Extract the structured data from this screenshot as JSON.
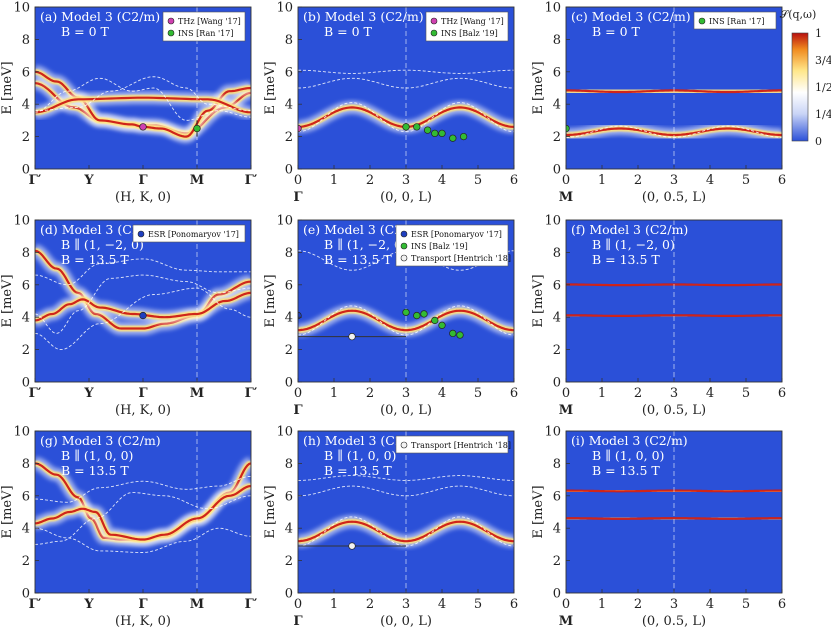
{
  "colorbar": {
    "title": "𝒮(q,ω)",
    "ticks": [
      "1",
      "3/4",
      "1/2",
      "1/4",
      "0"
    ]
  },
  "colors": {
    "background": "#2b50d8",
    "band_core": "#cc1a14",
    "band_glow": "#ffe27a",
    "thz": "#d040b0",
    "ins": "#33bb33",
    "esr": "#1f3fbf",
    "transport": "#f2f2f2"
  },
  "chart_data": [
    {
      "panel": "a",
      "type": "line",
      "annotation": [
        "(a) Model 3 (C2/m)",
        "B = 0 T"
      ],
      "xlabel": "(H, K, 0)",
      "ylabel": "E [meV]",
      "ylim": [
        0,
        10
      ],
      "x_kind": "path",
      "x_ticks": [
        "Γ′",
        "Y",
        "Γ",
        "M",
        "Γ′"
      ],
      "bands": [
        {
          "x": [
            0,
            0.18,
            0.3,
            0.45,
            0.55,
            0.7,
            0.88,
            1
          ],
          "y": [
            5.3,
            3.8,
            3.0,
            2.7,
            2.7,
            2.2,
            3.8,
            4.7
          ]
        },
        {
          "x": [
            0,
            0.1,
            0.2,
            0.3,
            0.45,
            0.5,
            0.58,
            0.7,
            0.8,
            0.9,
            1
          ],
          "y": [
            6.0,
            5.4,
            4.4,
            3.0,
            2.75,
            2.6,
            2.5,
            2.0,
            3.6,
            4.8,
            5.0
          ]
        },
        {
          "x": [
            0,
            0.2,
            0.5,
            0.8,
            1
          ],
          "y": [
            3.5,
            4.3,
            4.4,
            4.3,
            3.5
          ]
        }
      ],
      "dashed": [
        {
          "x": [
            0,
            0.15,
            0.3,
            0.45,
            0.55,
            0.7,
            0.85,
            1
          ],
          "y": [
            3.5,
            4.8,
            5.6,
            4.8,
            5.0,
            3.0,
            3.6,
            3.2
          ]
        },
        {
          "x": [
            0,
            0.2,
            0.35,
            0.55,
            0.7,
            0.8,
            1
          ],
          "y": [
            3.6,
            3.8,
            4.8,
            5.7,
            5.0,
            4.0,
            3.6
          ]
        }
      ],
      "legend": [
        {
          "label": "THz [Wang '17]",
          "marker": "thz"
        },
        {
          "label": "INS [Ran '17]",
          "marker": "ins"
        }
      ],
      "points": [
        {
          "set": "thz",
          "x": 0.5,
          "y": 2.6
        },
        {
          "set": "ins",
          "x": 0.75,
          "y": 2.5,
          "err": 0.5
        }
      ],
      "vlines": [
        0.75
      ]
    },
    {
      "panel": "b",
      "type": "line",
      "annotation": [
        "(b) Model 3 (C2/m)",
        "B = 0 T"
      ],
      "xlabel": "(0, 0, L)",
      "ylabel": "E [meV]",
      "ylim": [
        0,
        10
      ],
      "x_kind": "L",
      "xlim": [
        0,
        6
      ],
      "x_ticks": [
        "0",
        "1",
        "2",
        "3",
        "4",
        "5",
        "6"
      ],
      "x_sub": "Γ",
      "bands": [
        {
          "fn": "cos",
          "base": 3.2,
          "amp": -0.6,
          "period": 3
        }
      ],
      "dashed": [
        {
          "fn": "cos",
          "base": 6.0,
          "amp": 0.1,
          "period": 3
        },
        {
          "fn": "cos",
          "base": 5.3,
          "amp": -0.3,
          "period": 3
        },
        {
          "fn": "cos",
          "base": 3.2,
          "amp": -0.9,
          "period": 3
        }
      ],
      "legend": [
        {
          "label": "THz [Wang '17]",
          "marker": "thz"
        },
        {
          "label": "INS [Balz '19]",
          "marker": "ins"
        }
      ],
      "points": [
        {
          "set": "thz",
          "x": 0,
          "y": 2.5
        },
        {
          "set": "ins",
          "x": 3.0,
          "y": 2.6,
          "err": 0.25
        },
        {
          "set": "ins",
          "x": 3.3,
          "y": 2.6
        },
        {
          "set": "ins",
          "x": 3.6,
          "y": 2.4
        },
        {
          "set": "ins",
          "x": 3.8,
          "y": 2.2
        },
        {
          "set": "ins",
          "x": 4.0,
          "y": 2.2
        },
        {
          "set": "ins",
          "x": 4.3,
          "y": 1.9
        },
        {
          "set": "ins",
          "x": 4.6,
          "y": 2.0
        }
      ],
      "vlines": [
        3
      ]
    },
    {
      "panel": "c",
      "type": "line",
      "annotation": [
        "(c) Model 3 (C2/m)",
        "B = 0 T"
      ],
      "xlabel": "(0, 0.5, L)",
      "ylabel": "E [meV]",
      "ylim": [
        0,
        10
      ],
      "x_kind": "L",
      "xlim": [
        0,
        6
      ],
      "x_ticks": [
        "0",
        "1",
        "2",
        "3",
        "4",
        "5",
        "6"
      ],
      "x_sub": "M",
      "bands": [
        {
          "fn": "cos",
          "base": 2.3,
          "amp": -0.2,
          "period": 3
        },
        {
          "fn": "cos",
          "base": 4.8,
          "amp": 0.05,
          "period": 3
        }
      ],
      "dashed": [
        {
          "fn": "cos",
          "base": 2.3,
          "amp": -0.35,
          "period": 3
        }
      ],
      "legend": [
        {
          "label": "INS [Ran '17]",
          "marker": "ins"
        }
      ],
      "points": [
        {
          "set": "ins",
          "x": 0,
          "y": 2.5,
          "err": 0.5
        }
      ],
      "vlines": [
        3
      ]
    },
    {
      "panel": "d",
      "type": "line",
      "annotation": [
        "(d) Model 3 (C2/m)",
        "B ∥ (1, −2, 0)",
        "B = 13.5 T"
      ],
      "xlabel": "(H, K, 0)",
      "ylabel": "E [meV]",
      "ylim": [
        0,
        10
      ],
      "x_kind": "path",
      "x_ticks": [
        "Γ′",
        "Y",
        "Γ",
        "M",
        "Γ′"
      ],
      "bands": [
        {
          "x": [
            0,
            0.1,
            0.2,
            0.28,
            0.4,
            0.5,
            0.6,
            0.75,
            0.85,
            1
          ],
          "y": [
            8.1,
            7.0,
            5.5,
            4.2,
            3.3,
            3.3,
            3.6,
            4.1,
            5.4,
            6.2
          ]
        },
        {
          "x": [
            0,
            0.08,
            0.16,
            0.22,
            0.3,
            0.45,
            0.6,
            0.75,
            0.88,
            1
          ],
          "y": [
            3.8,
            4.2,
            4.8,
            5.1,
            4.6,
            4.2,
            4.0,
            4.2,
            5.0,
            5.5
          ]
        }
      ],
      "dashed": [
        {
          "x": [
            0,
            0.15,
            0.3,
            0.5,
            0.7,
            0.85,
            1
          ],
          "y": [
            6.6,
            6.0,
            7.3,
            7.6,
            6.9,
            6.8,
            6.8
          ]
        },
        {
          "x": [
            0,
            0.1,
            0.2,
            0.35,
            0.5,
            0.7,
            0.85,
            1
          ],
          "y": [
            4.2,
            3.0,
            4.4,
            6.4,
            6.6,
            6.2,
            5.5,
            5.8
          ]
        },
        {
          "x": [
            0,
            0.12,
            0.3,
            0.55,
            0.75,
            0.9,
            1
          ],
          "y": [
            3.0,
            2.0,
            3.6,
            5.4,
            5.8,
            4.5,
            4.0
          ]
        }
      ],
      "legend": [
        {
          "label": "ESR [Ponomaryov '17]",
          "marker": "esr"
        }
      ],
      "points": [
        {
          "set": "esr",
          "x": 0.5,
          "y": 4.1
        }
      ],
      "vlines": [
        0.75
      ]
    },
    {
      "panel": "e",
      "type": "line",
      "annotation": [
        "(e) Model 3 (C2/m)",
        "B ∥ (1, −2, 0)",
        "B = 13.5 T"
      ],
      "xlabel": "(0, 0, L)",
      "ylabel": "E [meV]",
      "ylim": [
        0,
        10
      ],
      "x_kind": "L",
      "xlim": [
        0,
        6
      ],
      "x_ticks": [
        "0",
        "1",
        "2",
        "3",
        "4",
        "5",
        "6"
      ],
      "x_sub": "Γ",
      "bands": [
        {
          "fn": "cos",
          "base": 3.8,
          "amp": -0.6,
          "period": 3
        }
      ],
      "dashed": [
        {
          "fn": "cos",
          "base": 7.5,
          "amp": 0.6,
          "period": 3
        },
        {
          "fn": "cos",
          "base": 3.8,
          "amp": -0.9,
          "period": 3
        }
      ],
      "legend": [
        {
          "label": "ESR [Ponomaryov '17]",
          "marker": "esr"
        },
        {
          "label": "INS [Balz '19]",
          "marker": "ins"
        },
        {
          "label": "Transport [Hentrich '18]",
          "marker": "transport"
        }
      ],
      "points": [
        {
          "set": "esr",
          "x": 0,
          "y": 4.1
        },
        {
          "set": "transport",
          "x": 1.5,
          "y": 2.8,
          "xerr": 1.5
        },
        {
          "set": "ins",
          "x": 3.0,
          "y": 4.3
        },
        {
          "set": "ins",
          "x": 3.3,
          "y": 4.1
        },
        {
          "set": "ins",
          "x": 3.5,
          "y": 4.2
        },
        {
          "set": "ins",
          "x": 3.8,
          "y": 3.8
        },
        {
          "set": "ins",
          "x": 4.0,
          "y": 3.5
        },
        {
          "set": "ins",
          "x": 4.3,
          "y": 3.0
        },
        {
          "set": "ins",
          "x": 4.5,
          "y": 2.9
        }
      ],
      "vlines": [
        3
      ]
    },
    {
      "panel": "f",
      "type": "line",
      "annotation": [
        "(f) Model 3 (C2/m)",
        "B ∥ (1, −2, 0)",
        "B = 13.5 T"
      ],
      "xlabel": "(0, 0.5, L)",
      "ylabel": "E [meV]",
      "ylim": [
        0,
        10
      ],
      "x_kind": "L",
      "xlim": [
        0,
        6
      ],
      "x_ticks": [
        "0",
        "1",
        "2",
        "3",
        "4",
        "5",
        "6"
      ],
      "x_sub": "M",
      "bands": [
        {
          "fn": "cos",
          "base": 4.1,
          "amp": 0.02,
          "period": 3
        },
        {
          "fn": "cos",
          "base": 6.0,
          "amp": 0.02,
          "period": 3
        }
      ],
      "dashed": [],
      "legend": [],
      "points": [],
      "vlines": [
        3
      ]
    },
    {
      "panel": "g",
      "type": "line",
      "annotation": [
        "(g) Model 3 (C2/m)",
        "B ∥ (1, 0, 0)",
        "B = 13.5 T"
      ],
      "xlabel": "(H, K, 0)",
      "ylabel": "E [meV]",
      "ylim": [
        0,
        10
      ],
      "x_kind": "path",
      "x_ticks": [
        "Γ′",
        "Y",
        "Γ",
        "M",
        "Γ′"
      ],
      "bands": [
        {
          "x": [
            0,
            0.1,
            0.2,
            0.26,
            0.32,
            0.4,
            0.5,
            0.6,
            0.75,
            0.9,
            1
          ],
          "y": [
            8.0,
            7.3,
            5.9,
            4.6,
            3.4,
            3.3,
            3.3,
            3.5,
            4.5,
            6.2,
            8.0
          ]
        },
        {
          "x": [
            0,
            0.08,
            0.16,
            0.22,
            0.28,
            0.35,
            0.5,
            0.6,
            0.75,
            0.9,
            1
          ],
          "y": [
            4.3,
            4.6,
            5.0,
            5.2,
            5.0,
            3.6,
            3.3,
            3.6,
            4.6,
            6.0,
            6.6
          ]
        }
      ],
      "dashed": [
        {
          "x": [
            0,
            0.15,
            0.3,
            0.5,
            0.7,
            0.85,
            1
          ],
          "y": [
            5.8,
            5.6,
            6.5,
            6.9,
            6.4,
            6.6,
            7.2
          ]
        },
        {
          "x": [
            0,
            0.12,
            0.28,
            0.45,
            0.6,
            0.8,
            1
          ],
          "y": [
            3.0,
            3.2,
            4.6,
            6.2,
            6.0,
            5.2,
            6.0
          ]
        },
        {
          "x": [
            0,
            0.15,
            0.3,
            0.5,
            0.7,
            0.85,
            1
          ],
          "y": [
            4.0,
            3.4,
            2.6,
            2.5,
            3.2,
            4.0,
            3.5
          ]
        }
      ],
      "legend": [],
      "points": [],
      "vlines": [
        0.75
      ]
    },
    {
      "panel": "h",
      "type": "line",
      "annotation": [
        "(h) Model 3 (C2/m)",
        "B ∥ (1, 0, 0)",
        "B = 13.5 T"
      ],
      "xlabel": "(0, 0, L)",
      "ylabel": "E [meV]",
      "ylim": [
        0,
        10
      ],
      "x_kind": "L",
      "xlim": [
        0,
        6
      ],
      "x_ticks": [
        "0",
        "1",
        "2",
        "3",
        "4",
        "5",
        "6"
      ],
      "x_sub": "Γ",
      "bands": [
        {
          "fn": "cos",
          "base": 3.8,
          "amp": -0.6,
          "period": 3
        }
      ],
      "dashed": [
        {
          "fn": "cos",
          "base": 6.3,
          "amp": -0.3,
          "period": 3
        },
        {
          "fn": "cos",
          "base": 7.1,
          "amp": -0.15,
          "period": 3
        },
        {
          "fn": "cos",
          "base": 3.8,
          "amp": -0.9,
          "period": 3
        }
      ],
      "legend": [
        {
          "label": "Transport [Hentrich '18]",
          "marker": "transport"
        }
      ],
      "points": [
        {
          "set": "transport",
          "x": 1.5,
          "y": 2.9,
          "xerr": 1.5
        }
      ],
      "vlines": [
        3
      ]
    },
    {
      "panel": "i",
      "type": "line",
      "annotation": [
        "(i) Model 3 (C2/m)",
        "B ∥ (1, 0, 0)",
        "B = 13.5 T"
      ],
      "xlabel": "(0, 0.5, L)",
      "ylabel": "E [meV]",
      "ylim": [
        0,
        10
      ],
      "x_kind": "L",
      "xlim": [
        0,
        6
      ],
      "x_ticks": [
        "0",
        "1",
        "2",
        "3",
        "4",
        "5",
        "6"
      ],
      "x_sub": "M",
      "bands": [
        {
          "fn": "cos",
          "base": 4.6,
          "amp": 0.02,
          "period": 3
        },
        {
          "fn": "cos",
          "base": 6.3,
          "amp": 0.02,
          "period": 3
        }
      ],
      "dashed": [],
      "legend": [],
      "points": [],
      "vlines": [
        3
      ]
    }
  ]
}
